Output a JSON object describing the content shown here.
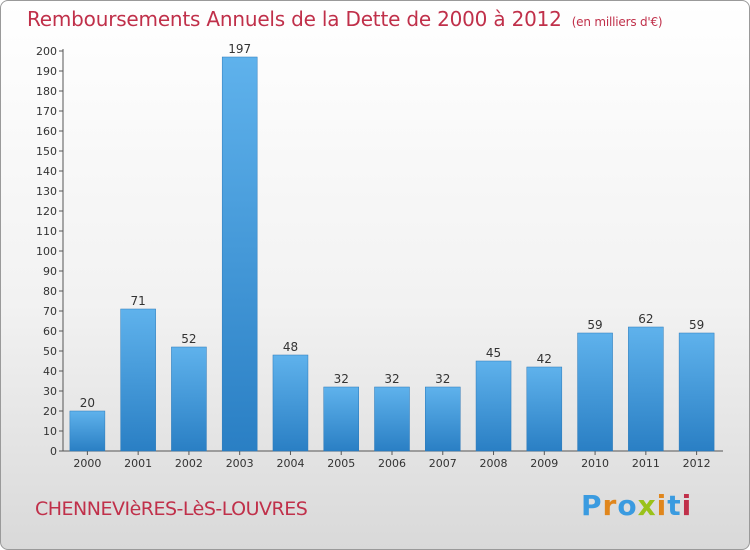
{
  "chart_data": {
    "type": "bar",
    "title": "Remboursements Annuels de la Dette de 2000 à 2012",
    "unit": "(en milliers d'€)",
    "categories": [
      "2000",
      "2001",
      "2002",
      "2003",
      "2004",
      "2005",
      "2006",
      "2007",
      "2008",
      "2009",
      "2010",
      "2011",
      "2012"
    ],
    "values": [
      20,
      71,
      52,
      197,
      48,
      32,
      32,
      32,
      45,
      42,
      59,
      62,
      59
    ],
    "ylim": [
      0,
      200
    ],
    "ytick_step": 10,
    "grid": false,
    "xlabel": "",
    "ylabel": "",
    "bar_color": "#3d92d6"
  },
  "footer": {
    "commune": "CHENNEVIèRES-LèS-LOUVRES",
    "logo_text": "Proxiti",
    "logo_colors": [
      "#3a9be0",
      "#e0861c",
      "#3a9be0",
      "#9ac21a",
      "#e0861c",
      "#3a9be0",
      "#c0304a"
    ]
  }
}
